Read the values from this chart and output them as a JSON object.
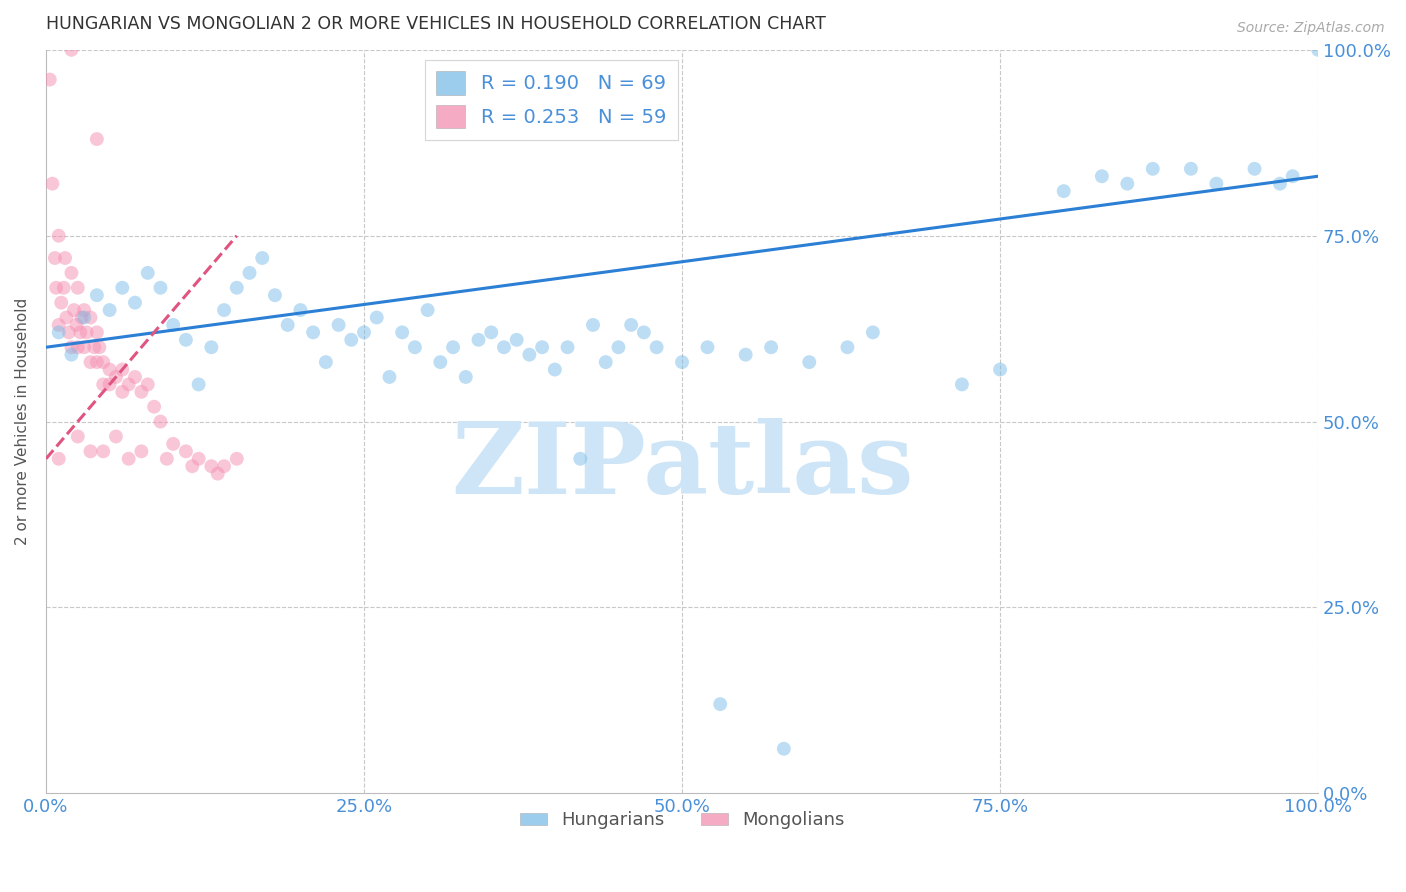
{
  "title": "HUNGARIAN VS MONGOLIAN 2 OR MORE VEHICLES IN HOUSEHOLD CORRELATION CHART",
  "source": "Source: ZipAtlas.com",
  "ylabel": "2 or more Vehicles in Household",
  "x_tick_labels": [
    "0.0%",
    "25.0%",
    "50.0%",
    "75.0%",
    "100.0%"
  ],
  "y_tick_labels": [
    "0.0%",
    "25.0%",
    "50.0%",
    "75.0%",
    "100.0%"
  ],
  "xlim": [
    0.0,
    100.0
  ],
  "ylim": [
    0.0,
    100.0
  ],
  "legend_blue_label": "R = 0.190   N = 69",
  "legend_pink_label": "R = 0.253   N = 59",
  "watermark": "ZIPatlas",
  "watermark_color": "#cde5f7",
  "background_color": "#ffffff",
  "grid_color": "#c8c8c8",
  "title_color": "#333333",
  "tick_label_color": "#4a90d9",
  "source_color": "#aaaaaa",
  "hungarian_color": "#7bbde8",
  "mongolian_color": "#f48fb1",
  "scatter_size": 100,
  "scatter_alpha": 0.5,
  "hungarian_x": [
    1.0,
    2.0,
    3.0,
    4.0,
    5.0,
    6.0,
    7.0,
    8.0,
    9.0,
    10.0,
    11.0,
    12.0,
    13.0,
    14.0,
    15.0,
    16.0,
    17.0,
    18.0,
    19.0,
    20.0,
    21.0,
    22.0,
    23.0,
    24.0,
    25.0,
    26.0,
    27.0,
    28.0,
    29.0,
    30.0,
    31.0,
    32.0,
    33.0,
    34.0,
    35.0,
    36.0,
    37.0,
    38.0,
    39.0,
    40.0,
    41.0,
    43.0,
    44.0,
    45.0,
    46.0,
    47.0,
    48.0,
    50.0,
    52.0,
    55.0,
    57.0,
    60.0,
    63.0,
    65.0,
    72.0,
    75.0,
    80.0,
    83.0,
    85.0,
    87.0,
    90.0,
    92.0,
    95.0,
    97.0,
    98.0,
    100.0,
    53.0,
    58.0,
    42.0
  ],
  "hungarian_y": [
    62.0,
    59.0,
    64.0,
    67.0,
    65.0,
    68.0,
    66.0,
    70.0,
    68.0,
    63.0,
    61.0,
    55.0,
    60.0,
    65.0,
    68.0,
    70.0,
    72.0,
    67.0,
    63.0,
    65.0,
    62.0,
    58.0,
    63.0,
    61.0,
    62.0,
    64.0,
    56.0,
    62.0,
    60.0,
    65.0,
    58.0,
    60.0,
    56.0,
    61.0,
    62.0,
    60.0,
    61.0,
    59.0,
    60.0,
    57.0,
    60.0,
    63.0,
    58.0,
    60.0,
    63.0,
    62.0,
    60.0,
    58.0,
    60.0,
    59.0,
    60.0,
    58.0,
    60.0,
    62.0,
    55.0,
    57.0,
    81.0,
    83.0,
    82.0,
    84.0,
    84.0,
    82.0,
    84.0,
    82.0,
    83.0,
    100.0,
    12.0,
    6.0,
    45.0
  ],
  "mongolian_x": [
    0.3,
    0.5,
    0.7,
    0.8,
    1.0,
    1.0,
    1.2,
    1.4,
    1.5,
    1.6,
    1.8,
    2.0,
    2.0,
    2.2,
    2.4,
    2.5,
    2.5,
    2.7,
    2.8,
    3.0,
    3.0,
    3.2,
    3.5,
    3.5,
    3.8,
    4.0,
    4.0,
    4.2,
    4.5,
    4.5,
    5.0,
    5.0,
    5.5,
    6.0,
    6.0,
    6.5,
    7.0,
    7.5,
    8.0,
    8.5,
    9.0,
    10.0,
    11.0,
    12.0,
    13.0,
    14.0,
    15.0,
    1.0,
    2.5,
    3.5,
    4.5,
    5.5,
    6.5,
    7.5,
    9.5,
    11.5,
    13.5,
    2.0,
    4.0
  ],
  "mongolian_y": [
    96.0,
    82.0,
    72.0,
    68.0,
    75.0,
    63.0,
    66.0,
    68.0,
    72.0,
    64.0,
    62.0,
    70.0,
    60.0,
    65.0,
    63.0,
    68.0,
    60.0,
    62.0,
    64.0,
    65.0,
    60.0,
    62.0,
    64.0,
    58.0,
    60.0,
    62.0,
    58.0,
    60.0,
    58.0,
    55.0,
    57.0,
    55.0,
    56.0,
    54.0,
    57.0,
    55.0,
    56.0,
    54.0,
    55.0,
    52.0,
    50.0,
    47.0,
    46.0,
    45.0,
    44.0,
    44.0,
    45.0,
    45.0,
    48.0,
    46.0,
    46.0,
    48.0,
    45.0,
    46.0,
    45.0,
    44.0,
    43.0,
    100.0,
    88.0
  ],
  "blue_trend_x": [
    0.0,
    100.0
  ],
  "blue_trend_y": [
    60.0,
    83.0
  ],
  "blue_trend_color": "#2b7fd4",
  "pink_trend_x": [
    0.0,
    15.0
  ],
  "pink_trend_y": [
    45.0,
    75.0
  ],
  "pink_trend_color": "#e05580"
}
